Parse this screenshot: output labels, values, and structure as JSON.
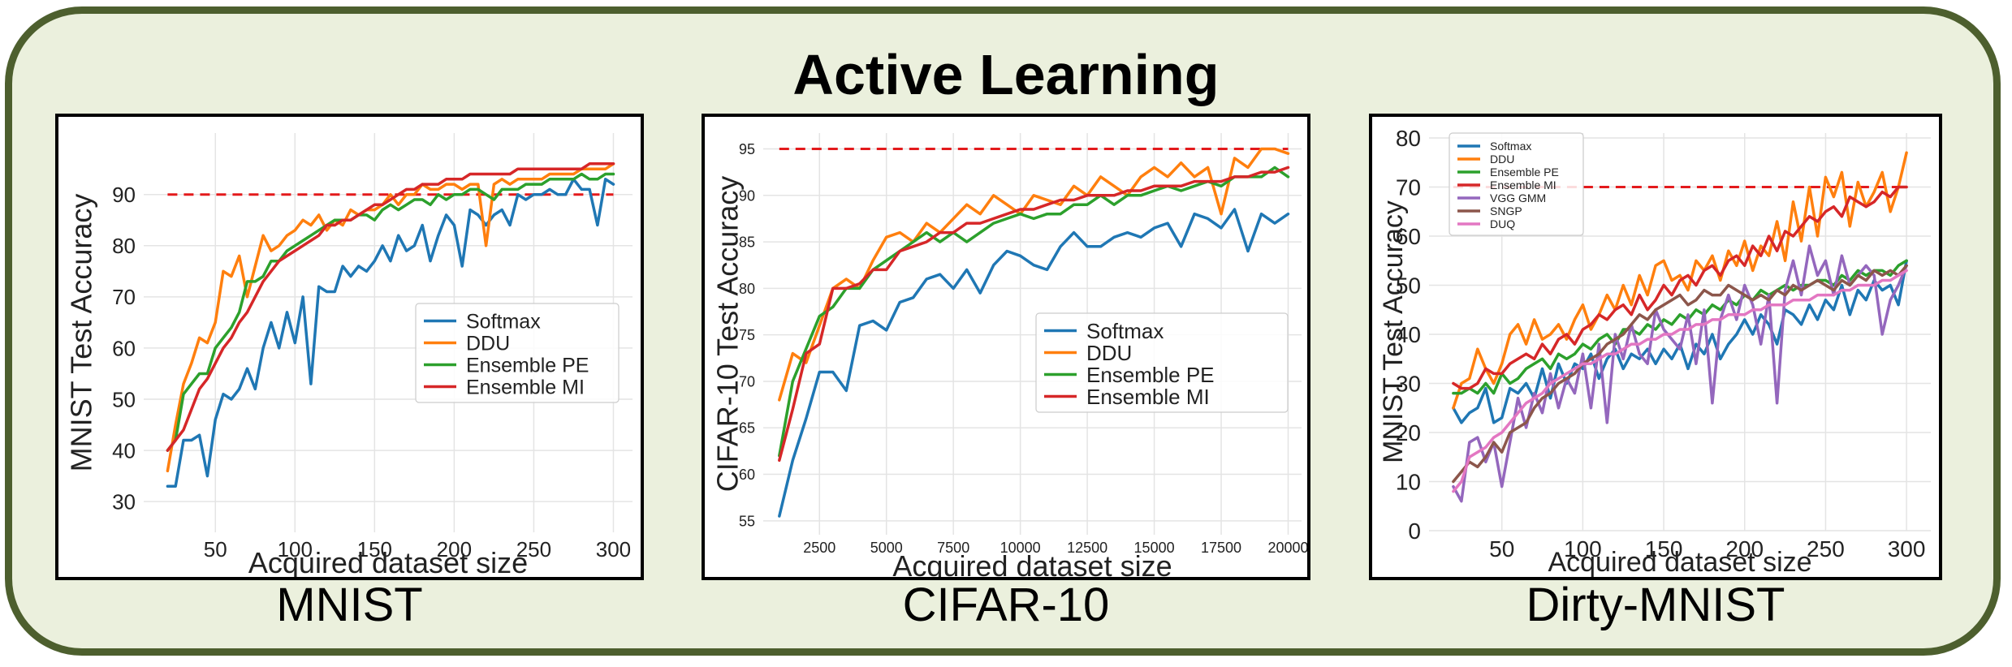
{
  "header": {
    "title": "Active Learning"
  },
  "panels": [
    {
      "caption": "MNIST"
    },
    {
      "caption": "CIFAR-10"
    },
    {
      "caption": "Dirty-MNIST"
    }
  ],
  "colors": {
    "Softmax": "#1f77b4",
    "DDU": "#ff7f0e",
    "Ensemble PE": "#2ca02c",
    "Ensemble MI": "#d62728",
    "VGG GMM": "#9467bd",
    "SNGP": "#8c564b",
    "DUQ": "#e377c2",
    "reference": "#e31a1c",
    "frame_border": "#4d5f2e",
    "frame_fill": "#ebf0dd"
  },
  "chart_data": [
    {
      "type": "line",
      "xlabel": "Acquired dataset size",
      "ylabel": "MNIST Test Accuracy",
      "xlim": [
        5,
        312
      ],
      "ylim": [
        24,
        102
      ],
      "xticks": [
        50,
        100,
        150,
        200,
        250,
        300
      ],
      "yticks": [
        30,
        40,
        50,
        60,
        70,
        80,
        90
      ],
      "grid": true,
      "legend_position": "bottom-right",
      "reference_line": {
        "y": 90,
        "x": [
          20,
          300
        ],
        "style": "dashed"
      },
      "x": [
        20,
        25,
        30,
        35,
        40,
        45,
        50,
        55,
        60,
        65,
        70,
        75,
        80,
        85,
        90,
        95,
        100,
        105,
        110,
        115,
        120,
        125,
        130,
        135,
        140,
        145,
        150,
        155,
        160,
        165,
        170,
        175,
        180,
        185,
        190,
        195,
        200,
        205,
        210,
        215,
        220,
        225,
        230,
        235,
        240,
        245,
        250,
        255,
        260,
        265,
        270,
        275,
        280,
        285,
        290,
        295,
        300
      ],
      "series": [
        {
          "name": "Softmax",
          "values": [
            33,
            33,
            42,
            42,
            43,
            35,
            46,
            51,
            50,
            52,
            56,
            52,
            60,
            65,
            60,
            67,
            61,
            70,
            53,
            72,
            71,
            71,
            76,
            74,
            76,
            75,
            77,
            80,
            77,
            82,
            79,
            80,
            84,
            77,
            82,
            86,
            84,
            76,
            87,
            86,
            84,
            86,
            87,
            84,
            90,
            89,
            90,
            90,
            91,
            90,
            90,
            93,
            91,
            91,
            84,
            93,
            92
          ]
        },
        {
          "name": "DDU",
          "values": [
            36,
            45,
            53,
            57,
            62,
            61,
            65,
            75,
            74,
            78,
            70,
            76,
            82,
            79,
            80,
            82,
            83,
            85,
            84,
            86,
            83,
            85,
            84,
            87,
            86,
            87,
            87,
            88,
            90,
            88,
            90,
            90,
            92,
            91,
            91,
            92,
            92,
            91,
            92,
            92,
            80,
            92,
            93,
            92,
            93,
            93,
            93,
            93,
            94,
            94,
            94,
            94,
            95,
            95,
            95,
            95,
            96
          ]
        },
        {
          "name": "Ensemble PE",
          "values": [
            40,
            42,
            51,
            53,
            55,
            55,
            60,
            62,
            64,
            67,
            73,
            73,
            74,
            77,
            77,
            79,
            80,
            81,
            82,
            83,
            84,
            85,
            85,
            85,
            86,
            86,
            85,
            87,
            88,
            87,
            88,
            89,
            89,
            88,
            90,
            89,
            90,
            90,
            91,
            91,
            90,
            89,
            91,
            91,
            91,
            92,
            92,
            92,
            93,
            93,
            93,
            93,
            94,
            93,
            93,
            94,
            94
          ]
        },
        {
          "name": "Ensemble MI",
          "values": [
            40,
            42,
            44,
            48,
            52,
            54,
            57,
            60,
            62,
            65,
            67,
            70,
            73,
            75,
            77,
            78,
            79,
            80,
            81,
            82,
            84,
            84,
            85,
            85,
            86,
            87,
            88,
            88,
            89,
            90,
            91,
            91,
            92,
            92,
            92,
            93,
            93,
            93,
            94,
            94,
            94,
            94,
            94,
            94,
            95,
            95,
            95,
            95,
            95,
            95,
            95,
            95,
            95,
            96,
            96,
            96,
            96
          ]
        }
      ]
    },
    {
      "type": "line",
      "xlabel": "Acquired dataset size",
      "ylabel": "CIFAR-10 Test Accuracy",
      "xlim": [
        400,
        20500
      ],
      "ylim": [
        53.5,
        96.7
      ],
      "xticks": [
        2500,
        5000,
        7500,
        10000,
        12500,
        15000,
        17500,
        20000
      ],
      "yticks": [
        55,
        60,
        65,
        70,
        75,
        80,
        85,
        90,
        95
      ],
      "grid": true,
      "legend_position": "bottom-right",
      "reference_line": {
        "y": 95,
        "x": [
          1000,
          20000
        ],
        "style": "dashed"
      },
      "x": [
        1000,
        1500,
        2000,
        2500,
        3000,
        3500,
        4000,
        4500,
        5000,
        5500,
        6000,
        6500,
        7000,
        7500,
        8000,
        8500,
        9000,
        9500,
        10000,
        10500,
        11000,
        11500,
        12000,
        12500,
        13000,
        13500,
        14000,
        14500,
        15000,
        15500,
        16000,
        16500,
        17000,
        17500,
        18000,
        18500,
        19000,
        19500,
        20000
      ],
      "series": [
        {
          "name": "Softmax",
          "values": [
            55.5,
            61.5,
            66,
            71,
            71,
            69,
            76,
            76.5,
            75.5,
            78.5,
            79,
            81,
            81.5,
            80,
            82,
            79.5,
            82.5,
            84,
            83.5,
            82.5,
            82,
            84.5,
            86,
            84.5,
            84.5,
            85.5,
            86,
            85.5,
            86.5,
            87,
            84.5,
            88,
            87.5,
            86.5,
            88.5,
            84,
            88,
            87,
            88
          ]
        },
        {
          "name": "DDU",
          "values": [
            68,
            73,
            72,
            76,
            80,
            81,
            80,
            83,
            85.5,
            86,
            85,
            87,
            86,
            87.5,
            89,
            88,
            90,
            89,
            88,
            90,
            89.5,
            89,
            91,
            90,
            92,
            91,
            90,
            92,
            93,
            92,
            93.5,
            92,
            93,
            88,
            94,
            93,
            95,
            95,
            94.5
          ]
        },
        {
          "name": "Ensemble PE",
          "values": [
            62,
            70,
            73.5,
            77,
            78,
            80,
            80,
            82,
            83,
            84,
            85,
            86,
            85,
            86,
            85,
            86,
            87,
            87.5,
            88,
            87.5,
            88,
            88,
            89,
            89,
            90,
            89,
            90,
            90,
            90.5,
            91,
            90.5,
            91,
            91.5,
            91,
            92,
            92,
            92,
            93,
            92
          ]
        },
        {
          "name": "Ensemble MI",
          "values": [
            61.5,
            67,
            73,
            74,
            80,
            80,
            80.5,
            82,
            82,
            84,
            84.5,
            85,
            86,
            86,
            87,
            87,
            87.5,
            88,
            88.5,
            88.5,
            89,
            89.5,
            89.5,
            90,
            90,
            90,
            90.5,
            90.5,
            91,
            91,
            91,
            91.5,
            91.5,
            91.5,
            92,
            92,
            92.5,
            92.5,
            93
          ]
        }
      ]
    },
    {
      "type": "line",
      "xlabel": "Acquired dataset size",
      "ylabel": "MNIST Test Accuracy",
      "xlim": [
        5,
        315
      ],
      "ylim": [
        0,
        81
      ],
      "xticks": [
        50,
        100,
        150,
        200,
        250,
        300
      ],
      "yticks": [
        0,
        10,
        20,
        30,
        40,
        50,
        60,
        70,
        80
      ],
      "grid": true,
      "legend_position": "top-left",
      "reference_line": {
        "y": 70,
        "x": [
          20,
          300
        ],
        "style": "dashed"
      },
      "x": [
        20,
        25,
        30,
        35,
        40,
        45,
        50,
        55,
        60,
        65,
        70,
        75,
        80,
        85,
        90,
        95,
        100,
        105,
        110,
        115,
        120,
        125,
        130,
        135,
        140,
        145,
        150,
        155,
        160,
        165,
        170,
        175,
        180,
        185,
        190,
        195,
        200,
        205,
        210,
        215,
        220,
        225,
        230,
        235,
        240,
        245,
        250,
        255,
        260,
        265,
        270,
        275,
        280,
        285,
        290,
        295,
        300
      ],
      "series": [
        {
          "name": "Softmax",
          "values": [
            25,
            22,
            24,
            25,
            29,
            22,
            23,
            29,
            28,
            30,
            27,
            33,
            27,
            34,
            30,
            34,
            33,
            36,
            31,
            35,
            37,
            33,
            36,
            35,
            37,
            34,
            37,
            35,
            38,
            33,
            38,
            36,
            40,
            35,
            38,
            40,
            43,
            40,
            44,
            42,
            38,
            45,
            44,
            42,
            46,
            43,
            47,
            45,
            50,
            44,
            49,
            47,
            51,
            49,
            50,
            46,
            55
          ]
        },
        {
          "name": "DDU",
          "values": [
            25,
            30,
            31,
            37,
            33,
            30,
            34,
            40,
            42,
            38,
            43,
            39,
            40,
            42,
            39,
            43,
            46,
            41,
            44,
            48,
            45,
            50,
            46,
            52,
            48,
            54,
            55,
            51,
            52,
            49,
            55,
            53,
            56,
            51,
            57,
            54,
            59,
            53,
            58,
            56,
            63,
            55,
            67,
            59,
            70,
            60,
            72,
            68,
            73,
            62,
            71,
            66,
            69,
            73,
            65,
            70,
            77
          ]
        },
        {
          "name": "Ensemble PE",
          "values": [
            28,
            28,
            29,
            28,
            30,
            28,
            32,
            30,
            31,
            33,
            34,
            35,
            33,
            36,
            35,
            36,
            38,
            37,
            39,
            40,
            38,
            41,
            41,
            40,
            42,
            41,
            43,
            42,
            44,
            43,
            45,
            44,
            46,
            45,
            47,
            46,
            48,
            47,
            49,
            48,
            49,
            50,
            49,
            50,
            50,
            51,
            51,
            50,
            52,
            51,
            53,
            52,
            53,
            53,
            52,
            54,
            55
          ]
        },
        {
          "name": "Ensemble MI",
          "values": [
            30,
            29,
            29,
            30,
            33,
            32,
            32,
            34,
            35,
            36,
            35,
            38,
            36,
            39,
            40,
            38,
            41,
            42,
            44,
            43,
            45,
            46,
            44,
            48,
            45,
            47,
            50,
            48,
            51,
            52,
            50,
            53,
            54,
            52,
            55,
            56,
            54,
            58,
            56,
            60,
            57,
            61,
            60,
            62,
            64,
            63,
            65,
            66,
            64,
            68,
            67,
            66,
            67,
            69,
            68,
            70,
            70
          ]
        },
        {
          "name": "VGG GMM",
          "values": [
            9,
            6,
            18,
            19,
            14,
            18,
            9,
            18,
            27,
            21,
            28,
            24,
            32,
            25,
            31,
            28,
            36,
            25,
            38,
            22,
            40,
            35,
            42,
            36,
            34,
            45,
            41,
            39,
            37,
            44,
            34,
            45,
            26,
            43,
            48,
            43,
            50,
            46,
            38,
            48,
            26,
            49,
            55,
            48,
            58,
            52,
            55,
            48,
            56,
            50,
            52,
            54,
            52,
            40,
            47,
            50,
            54
          ]
        },
        {
          "name": "SNGP",
          "values": [
            10,
            12,
            14,
            13,
            15,
            18,
            16,
            20,
            21,
            22,
            25,
            27,
            28,
            30,
            31,
            32,
            34,
            35,
            36,
            38,
            39,
            40,
            42,
            44,
            43,
            45,
            46,
            47,
            48,
            46,
            47,
            49,
            48,
            48,
            50,
            49,
            48,
            47,
            48,
            47,
            49,
            48,
            50,
            49,
            50,
            51,
            50,
            49,
            51,
            50,
            52,
            51,
            53,
            52,
            53,
            52,
            54
          ]
        },
        {
          "name": "DUQ",
          "values": [
            8,
            10,
            15,
            16,
            17,
            19,
            20,
            22,
            24,
            26,
            27,
            28,
            30,
            31,
            32,
            33,
            34,
            34,
            35,
            36,
            36,
            37,
            38,
            38,
            39,
            39,
            40,
            40,
            41,
            41,
            42,
            42,
            43,
            43,
            44,
            44,
            44,
            45,
            45,
            46,
            46,
            46,
            47,
            47,
            47,
            48,
            48,
            48,
            49,
            49,
            50,
            50,
            50,
            51,
            51,
            52,
            53
          ]
        }
      ]
    }
  ]
}
